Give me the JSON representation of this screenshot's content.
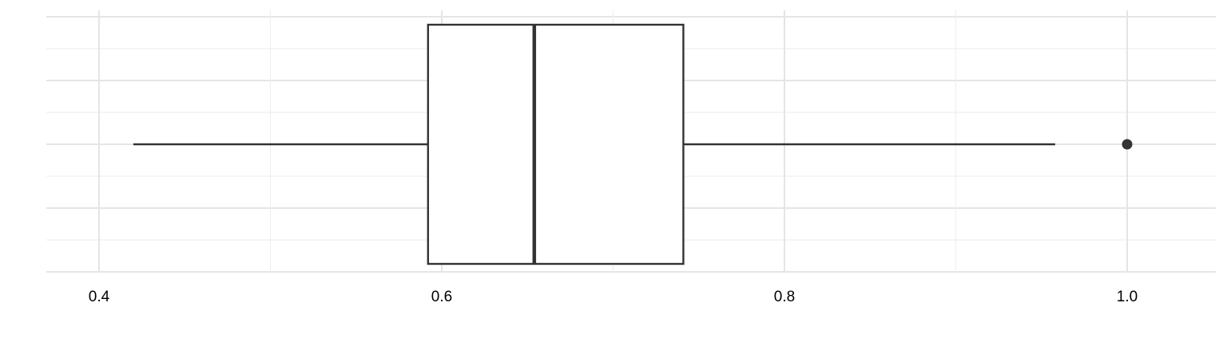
{
  "chart_data": {
    "type": "boxplot",
    "orientation": "horizontal",
    "title": "",
    "xlabel": "",
    "ylabel": "",
    "xlim": [
      0.37,
      1.05
    ],
    "x_ticks": [
      0.4,
      0.6,
      0.8,
      1.0
    ],
    "x_tick_labels": [
      "0.4",
      "0.6",
      "0.8",
      "1.0"
    ],
    "x_minor_ticks": [
      0.5,
      0.7,
      0.9
    ],
    "grid": true,
    "box": {
      "whisker_low": 0.42,
      "q1": 0.592,
      "median": 0.654,
      "q3": 0.741,
      "whisker_high": 0.958
    },
    "outliers": [
      1.0
    ],
    "colors": {
      "background": "#ffffff",
      "grid_major": "#e5e5e5",
      "grid_minor": "#efefef",
      "box_fill": "#ffffff",
      "stroke": "#333333",
      "text": "#000000"
    }
  }
}
